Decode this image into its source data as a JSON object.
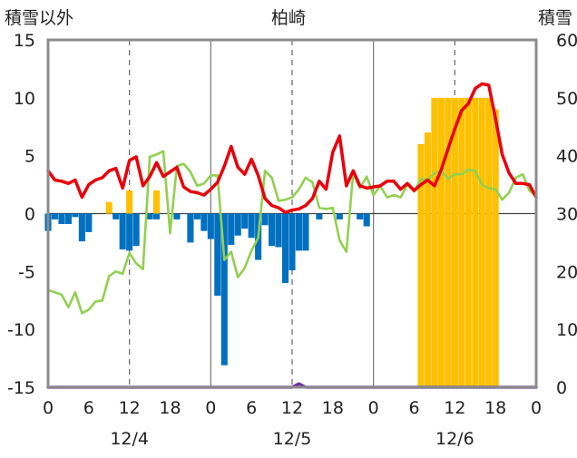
{
  "chart_data": {
    "type": "bar+line",
    "title": "柏崎",
    "left_axis_label": "積雪以外",
    "right_axis_label": "積雪",
    "left_ylim": [
      -15,
      15
    ],
    "left_ticks": [
      "15",
      "10",
      "5",
      "0",
      "-5",
      "-10",
      "-15"
    ],
    "right_ylim": [
      0,
      60
    ],
    "right_ticks": [
      "60",
      "50",
      "40",
      "30",
      "20",
      "10",
      "0"
    ],
    "x_tick_labels": [
      "0",
      "6",
      "12",
      "18",
      "0",
      "6",
      "12",
      "18",
      "0",
      "6",
      "12",
      "18",
      "0"
    ],
    "date_labels": [
      "12/4",
      "12/5",
      "12/6"
    ],
    "xlim": [
      0,
      72
    ],
    "grid": "vertical dashed at 12h, solid at day boundaries",
    "colors": {
      "red_line": "#e8000b",
      "green_line": "#92d050",
      "blue_bars": "#0070c0",
      "orange_bars": "#ffc000",
      "purple_line": "#7030a0"
    },
    "series": [
      {
        "axis": "left",
        "kind": "line",
        "color": "#e8000b",
        "points": [
          [
            0,
            3.7
          ],
          [
            1,
            2.9
          ],
          [
            2,
            2.8
          ],
          [
            3,
            2.6
          ],
          [
            4,
            2.9
          ],
          [
            5,
            1.4
          ],
          [
            6,
            2.5
          ],
          [
            7,
            2.9
          ],
          [
            8,
            3.1
          ],
          [
            9,
            3.7
          ],
          [
            10,
            3.9
          ],
          [
            11,
            2.2
          ],
          [
            12,
            4.6
          ],
          [
            13,
            4.9
          ],
          [
            14,
            2.4
          ],
          [
            15,
            3.2
          ],
          [
            16,
            4.4
          ],
          [
            17,
            3.2
          ],
          [
            18,
            3.6
          ],
          [
            19,
            4.0
          ],
          [
            20,
            2.3
          ],
          [
            21,
            1.9
          ],
          [
            22,
            1.8
          ],
          [
            23,
            1.6
          ],
          [
            24,
            2.1
          ],
          [
            25,
            2.7
          ],
          [
            26,
            4.1
          ],
          [
            27,
            5.8
          ],
          [
            28,
            4.0
          ],
          [
            29,
            3.4
          ],
          [
            30,
            4.7
          ],
          [
            31,
            3.3
          ],
          [
            32,
            1.3
          ],
          [
            33,
            0.7
          ],
          [
            34,
            0.5
          ],
          [
            35,
            0.1
          ],
          [
            36,
            0.3
          ],
          [
            37,
            0.4
          ],
          [
            38,
            0.7
          ],
          [
            39,
            1.3
          ],
          [
            40,
            2.8
          ],
          [
            41,
            2.1
          ],
          [
            42,
            5.3
          ],
          [
            43,
            6.7
          ],
          [
            44,
            2.4
          ],
          [
            45,
            3.7
          ],
          [
            46,
            2.4
          ],
          [
            47,
            2.2
          ],
          [
            48,
            2.3
          ],
          [
            49,
            2.4
          ],
          [
            50,
            2.8
          ],
          [
            51,
            2.8
          ],
          [
            52,
            2.1
          ],
          [
            53,
            2.6
          ],
          [
            54,
            2.0
          ],
          [
            55,
            2.5
          ],
          [
            56,
            2.9
          ],
          [
            57,
            2.4
          ],
          [
            58,
            3.8
          ],
          [
            59,
            5.6
          ],
          [
            60,
            7.3
          ],
          [
            61,
            8.9
          ],
          [
            62,
            9.5
          ],
          [
            63,
            10.8
          ],
          [
            64,
            11.2
          ],
          [
            65,
            11.1
          ],
          [
            66,
            8.2
          ],
          [
            67,
            5.1
          ],
          [
            68,
            3.5
          ],
          [
            69,
            2.6
          ],
          [
            70,
            2.6
          ],
          [
            71,
            2.5
          ],
          [
            72,
            1.4
          ]
        ]
      },
      {
        "axis": "left",
        "kind": "line",
        "color": "#92d050",
        "points": [
          [
            0,
            -6.6
          ],
          [
            1,
            -6.8
          ],
          [
            2,
            -7.0
          ],
          [
            3,
            -8.1
          ],
          [
            4,
            -6.8
          ],
          [
            5,
            -8.6
          ],
          [
            6,
            -8.3
          ],
          [
            7,
            -7.6
          ],
          [
            8,
            -7.5
          ],
          [
            9,
            -5.4
          ],
          [
            10,
            -5.0
          ],
          [
            11,
            -5.2
          ],
          [
            12,
            -3.4
          ],
          [
            13,
            -4.3
          ],
          [
            14,
            -4.8
          ],
          [
            15,
            4.9
          ],
          [
            16,
            5.1
          ],
          [
            17,
            5.4
          ],
          [
            18,
            -1.7
          ],
          [
            19,
            4.1
          ],
          [
            20,
            4.3
          ],
          [
            21,
            3.6
          ],
          [
            22,
            2.4
          ],
          [
            23,
            2.6
          ],
          [
            24,
            3.3
          ],
          [
            25,
            3.3
          ],
          [
            26,
            -4.0
          ],
          [
            27,
            -3.3
          ],
          [
            28,
            -5.5
          ],
          [
            29,
            -4.7
          ],
          [
            30,
            -3.2
          ],
          [
            31,
            -2.1
          ],
          [
            32,
            3.7
          ],
          [
            33,
            3.1
          ],
          [
            34,
            1.1
          ],
          [
            35,
            1.2
          ],
          [
            36,
            1.4
          ],
          [
            37,
            2.1
          ],
          [
            38,
            3.1
          ],
          [
            39,
            2.7
          ],
          [
            40,
            0.5
          ],
          [
            41,
            0.4
          ],
          [
            42,
            0.5
          ],
          [
            43,
            -2.3
          ],
          [
            44,
            -3.3
          ],
          [
            45,
            3.5
          ],
          [
            46,
            2.2
          ],
          [
            47,
            3.2
          ],
          [
            48,
            1.6
          ],
          [
            49,
            2.4
          ],
          [
            50,
            1.4
          ],
          [
            51,
            1.6
          ],
          [
            52,
            1.4
          ],
          [
            53,
            2.5
          ],
          [
            54,
            1.9
          ],
          [
            55,
            3.0
          ],
          [
            56,
            2.9
          ],
          [
            57,
            3.5
          ],
          [
            58,
            3.7
          ],
          [
            59,
            3.0
          ],
          [
            60,
            3.4
          ],
          [
            61,
            3.4
          ],
          [
            62,
            3.8
          ],
          [
            63,
            3.7
          ],
          [
            64,
            2.5
          ],
          [
            65,
            2.2
          ],
          [
            66,
            2.1
          ],
          [
            67,
            1.2
          ],
          [
            68,
            1.8
          ],
          [
            69,
            3.1
          ],
          [
            70,
            3.4
          ],
          [
            71,
            2.0
          ],
          [
            72,
            1.5
          ]
        ]
      },
      {
        "axis": "right",
        "kind": "line",
        "color": "#7030a0",
        "points": [
          [
            0,
            0
          ],
          [
            36,
            0
          ],
          [
            37,
            0.6
          ],
          [
            38,
            0
          ],
          [
            72,
            0
          ]
        ]
      },
      {
        "axis": "left",
        "kind": "bar",
        "color": "#0070c0",
        "points": [
          [
            0,
            -1.5
          ],
          [
            1,
            -0.5
          ],
          [
            2,
            -0.9
          ],
          [
            3,
            -0.9
          ],
          [
            4,
            -0.3
          ],
          [
            5,
            -2.4
          ],
          [
            6,
            -1.6
          ],
          [
            10,
            -0.5
          ],
          [
            11,
            -3.1
          ],
          [
            12,
            -3.2
          ],
          [
            13,
            -2.8
          ],
          [
            15,
            -0.5
          ],
          [
            16,
            -0.5
          ],
          [
            19,
            -0.5
          ],
          [
            21,
            -2.5
          ],
          [
            22,
            -0.5
          ],
          [
            23,
            -1.5
          ],
          [
            24,
            -2.2
          ],
          [
            25,
            -7.1
          ],
          [
            26,
            -13.1
          ],
          [
            27,
            -2.7
          ],
          [
            28,
            -1.9
          ],
          [
            29,
            -1.3
          ],
          [
            30,
            -2.1
          ],
          [
            31,
            -4.0
          ],
          [
            32,
            -1.0
          ],
          [
            33,
            -2.8
          ],
          [
            34,
            -2.9
          ],
          [
            35,
            -6.0
          ],
          [
            36,
            -4.9
          ],
          [
            37,
            -3.2
          ],
          [
            38,
            -3.2
          ],
          [
            40,
            -0.5
          ],
          [
            43,
            -0.5
          ],
          [
            46,
            -0.5
          ],
          [
            47,
            -1.1
          ]
        ]
      },
      {
        "axis": "left",
        "kind": "bar",
        "color": "#ffc000",
        "points": [
          [
            9,
            1.0
          ],
          [
            12,
            2.0
          ],
          [
            16,
            2.0
          ]
        ]
      },
      {
        "axis": "right",
        "kind": "bar",
        "color": "#ffc000",
        "points": [
          [
            55,
            42
          ],
          [
            56,
            44
          ],
          [
            57,
            50
          ],
          [
            58,
            50
          ],
          [
            59,
            50
          ],
          [
            60,
            50
          ],
          [
            61,
            50
          ],
          [
            62,
            50
          ],
          [
            63,
            50
          ],
          [
            64,
            50
          ],
          [
            65,
            50
          ],
          [
            66,
            48
          ]
        ]
      }
    ]
  }
}
